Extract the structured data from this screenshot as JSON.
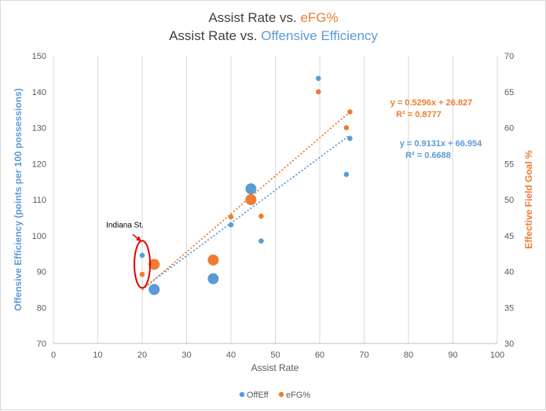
{
  "chart_data": {
    "type": "scatter",
    "title_lines": [
      {
        "prefix": "Assist Rate vs. ",
        "highlight": "eFG%",
        "color": "#ED7D31"
      },
      {
        "prefix": "Assist Rate vs. ",
        "highlight": "Offensive Efficiency",
        "color": "#5B9BD5"
      }
    ],
    "xlabel": "Assist Rate",
    "ylabel_left": "Offensive Efficiency (points per 100 possessions)",
    "ylabel_right": "Effective Field Goal %",
    "xlim": [
      0,
      100
    ],
    "xticks": [
      0,
      10,
      20,
      30,
      40,
      50,
      60,
      70,
      80,
      90,
      100
    ],
    "ylim_left": [
      70,
      150
    ],
    "yticks_left": [
      70,
      80,
      90,
      100,
      110,
      120,
      130,
      140,
      150
    ],
    "ylim_right": [
      30,
      70
    ],
    "yticks_right": [
      30,
      35,
      40,
      45,
      50,
      55,
      60,
      65,
      70
    ],
    "grid": "vertical",
    "legend_position": "bottom",
    "series": [
      {
        "name": "OffEff",
        "axis": "left",
        "color": "#5B9BD5",
        "points": [
          {
            "x": 20,
            "y": 94.5,
            "size": 1
          },
          {
            "x": 22.7,
            "y": 85,
            "size": 3
          },
          {
            "x": 36,
            "y": 88,
            "size": 3
          },
          {
            "x": 40,
            "y": 103,
            "size": 1
          },
          {
            "x": 44.5,
            "y": 113,
            "size": 3
          },
          {
            "x": 46.8,
            "y": 98.5,
            "size": 1
          },
          {
            "x": 59.7,
            "y": 143.7,
            "size": 1
          },
          {
            "x": 66,
            "y": 117,
            "size": 1
          },
          {
            "x": 66.8,
            "y": 127,
            "size": 1
          }
        ],
        "trendline": {
          "slope": 0.9131,
          "intercept": 66.954,
          "x_range": [
            20,
            66.8
          ],
          "equation": "y = 0.9131x + 66.954",
          "r2": "R² = 0.6688"
        }
      },
      {
        "name": "eFG%",
        "axis": "right",
        "color": "#ED7D31",
        "points": [
          {
            "x": 20,
            "y": 39.6,
            "size": 1
          },
          {
            "x": 22.7,
            "y": 41,
            "size": 3
          },
          {
            "x": 36,
            "y": 41.6,
            "size": 3
          },
          {
            "x": 40,
            "y": 47.6,
            "size": 1
          },
          {
            "x": 44.5,
            "y": 50,
            "size": 3
          },
          {
            "x": 46.8,
            "y": 47.7,
            "size": 1
          },
          {
            "x": 59.7,
            "y": 65,
            "size": 1
          },
          {
            "x": 66,
            "y": 60,
            "size": 1
          },
          {
            "x": 66.8,
            "y": 62.2,
            "size": 1
          }
        ],
        "trendline": {
          "slope": 0.5296,
          "intercept": 26.827,
          "x_range": [
            20,
            66.8
          ],
          "equation": "y = 0.5296x + 26.827",
          "r2": "R² = 0.8777"
        }
      }
    ],
    "annotation": {
      "text": "Indiana St.",
      "x": 20,
      "y_left": 92,
      "color": "#E00000"
    }
  }
}
